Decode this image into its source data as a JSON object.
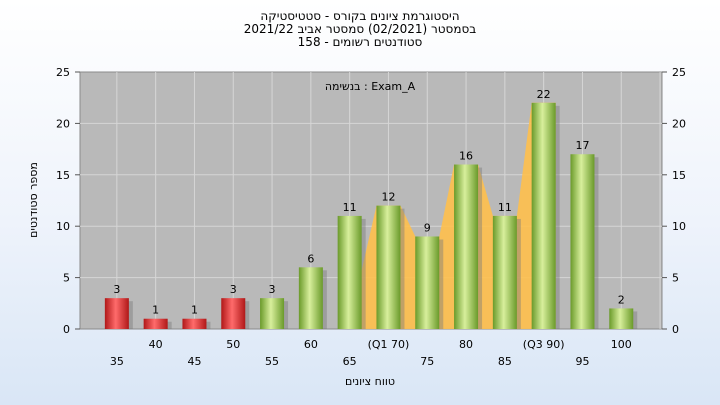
{
  "chart_data": {
    "type": "bar",
    "title_lines": [
      "היסטוגרמת ציונים בקורס - סטטיסטיקה",
      "בסמסטר  (02/2021)  סמסטר אביב 2021/22",
      "סטודנטים רשומים - 158"
    ],
    "annotation": "בנשימה : Exam_A",
    "xlabel": "טווח ציונים",
    "ylabel": "מספר סטודנטים",
    "ylim": [
      0,
      25
    ],
    "yticks": [
      0,
      5,
      10,
      15,
      20,
      25
    ],
    "grid": true,
    "categories": [
      "35",
      "40",
      "45",
      "50",
      "55",
      "60",
      "65",
      "(Q1 70)",
      "75",
      "80",
      "85",
      "(Q3 90)",
      "95",
      "100"
    ],
    "values": [
      3,
      1,
      1,
      3,
      3,
      6,
      11,
      12,
      9,
      16,
      11,
      22,
      17,
      2
    ],
    "bar_colors": [
      "red",
      "red",
      "red",
      "red",
      "green",
      "green",
      "green",
      "green",
      "green",
      "green",
      "green",
      "green",
      "green",
      "green"
    ],
    "colors": {
      "red_light": "#ff6b6b",
      "red_dark": "#b01818",
      "green_light": "#d8ef9c",
      "green_dark": "#6a9a2a",
      "plot_bg": "#b9b9b9",
      "iqr_band": "#ffc04d"
    },
    "iqr_range": [
      "(Q1 70)",
      "(Q3 90)"
    ]
  }
}
